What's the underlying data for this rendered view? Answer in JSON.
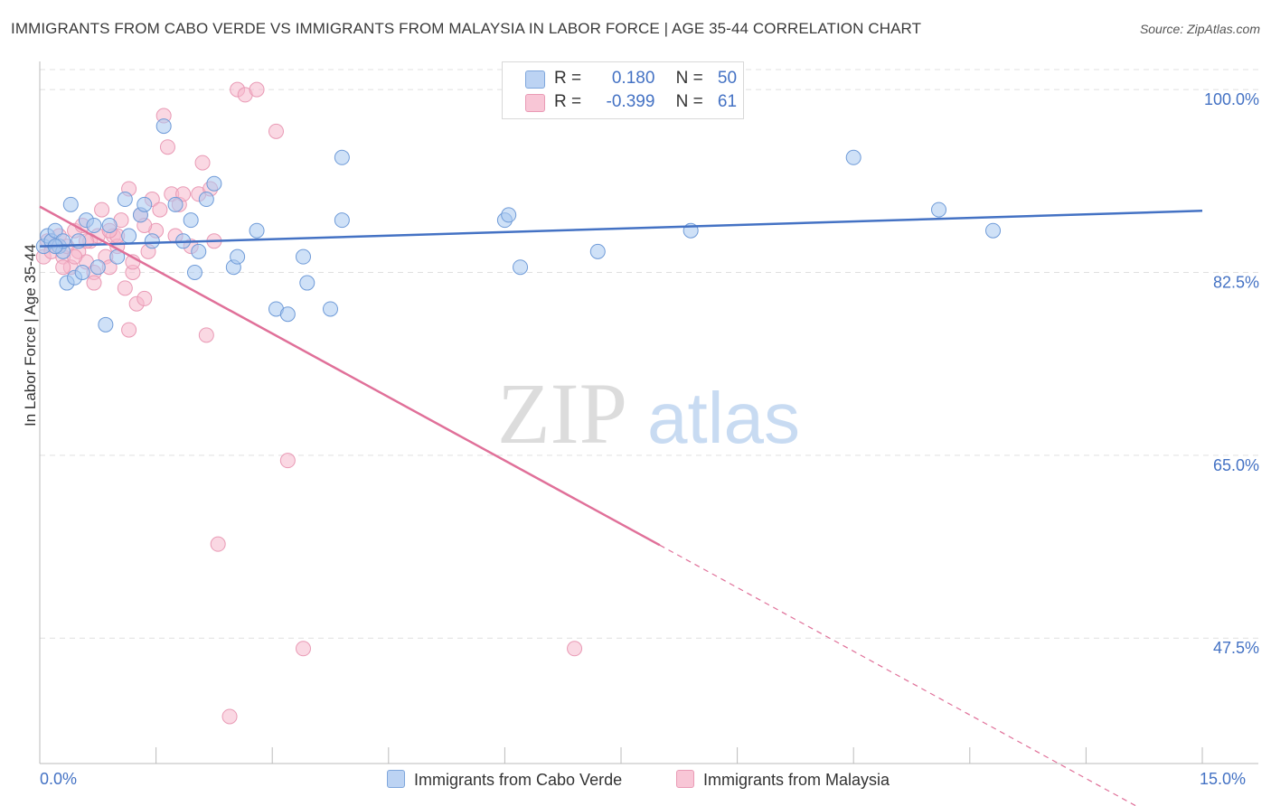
{
  "title": "IMMIGRANTS FROM CABO VERDE VS IMMIGRANTS FROM MALAYSIA IN LABOR FORCE | AGE 35-44 CORRELATION CHART",
  "source": "Source: ZipAtlas.com",
  "watermark": {
    "zip": "ZIP",
    "atlas": "atlas"
  },
  "legend": {
    "r_label": "R =",
    "n_label": "N =",
    "series1": {
      "r": "0.180",
      "n": "50"
    },
    "series2": {
      "r": "-0.399",
      "n": "61"
    }
  },
  "colors": {
    "blue": "#4472c4",
    "blue_fill": "#a8c8f0",
    "pink": "#e07099",
    "pink_fill": "#f5b8cc",
    "grid": "#e0e0e0"
  },
  "chart_data": {
    "type": "scatter",
    "title": "IMMIGRANTS FROM CABO VERDE VS IMMIGRANTS FROM MALAYSIA IN LABOR FORCE | AGE 35-44 CORRELATION CHART",
    "xlabel": "",
    "ylabel": "In Labor Force | Age 35-44",
    "xlim": [
      0,
      15
    ],
    "ylim": [
      35.5,
      102
    ],
    "x_tick_labels": [
      "0.0%",
      "15.0%"
    ],
    "y_ticks": [
      47.5,
      65.0,
      82.5,
      100.0
    ],
    "y_tick_labels": [
      "47.5%",
      "65.0%",
      "82.5%",
      "100.0%"
    ],
    "series": [
      {
        "name": "Immigrants from Cabo Verde",
        "color": "#4472c4",
        "trend": {
          "x0": 0,
          "y0": 85.0,
          "x1": 15,
          "y1": 88.4
        },
        "points": [
          [
            0.05,
            85.0
          ],
          [
            0.1,
            86.0
          ],
          [
            0.15,
            85.5
          ],
          [
            0.2,
            86.5
          ],
          [
            0.25,
            85.0
          ],
          [
            0.3,
            84.5
          ],
          [
            0.35,
            81.5
          ],
          [
            0.4,
            89.0
          ],
          [
            0.45,
            82.0
          ],
          [
            0.5,
            85.5
          ],
          [
            0.55,
            82.5
          ],
          [
            0.6,
            87.5
          ],
          [
            0.7,
            87.0
          ],
          [
            0.75,
            83.0
          ],
          [
            0.85,
            77.5
          ],
          [
            0.9,
            87.0
          ],
          [
            1.0,
            84.0
          ],
          [
            1.1,
            89.5
          ],
          [
            1.15,
            86.0
          ],
          [
            1.3,
            88.0
          ],
          [
            1.35,
            89.0
          ],
          [
            1.45,
            85.5
          ],
          [
            1.6,
            96.5
          ],
          [
            1.75,
            89.0
          ],
          [
            1.85,
            85.5
          ],
          [
            1.95,
            87.5
          ],
          [
            2.0,
            82.5
          ],
          [
            2.05,
            84.5
          ],
          [
            2.15,
            89.5
          ],
          [
            2.25,
            91.0
          ],
          [
            2.5,
            83.0
          ],
          [
            2.55,
            84.0
          ],
          [
            2.8,
            86.5
          ],
          [
            3.05,
            79.0
          ],
          [
            3.2,
            78.5
          ],
          [
            3.4,
            84.0
          ],
          [
            3.45,
            81.5
          ],
          [
            3.75,
            79.0
          ],
          [
            3.9,
            93.5
          ],
          [
            3.9,
            87.5
          ],
          [
            6.0,
            87.5
          ],
          [
            6.05,
            88.0
          ],
          [
            6.2,
            83.0
          ],
          [
            7.2,
            84.5
          ],
          [
            8.4,
            86.5
          ],
          [
            10.5,
            93.5
          ],
          [
            11.6,
            88.5
          ],
          [
            12.3,
            86.5
          ],
          [
            0.3,
            85.5
          ],
          [
            0.2,
            85.0
          ]
        ]
      },
      {
        "name": "Immigrants from Malaysia",
        "color": "#e07099",
        "trend": {
          "x0": 0,
          "y0": 88.8,
          "x1": 8.0,
          "y1": 56.4
        },
        "trend_dashed": {
          "x0": 8.0,
          "y0": 56.4,
          "x1": 14.5,
          "y1": 30.0
        },
        "points": [
          [
            0.05,
            84.0
          ],
          [
            0.1,
            85.5
          ],
          [
            0.15,
            84.5
          ],
          [
            0.2,
            85.0
          ],
          [
            0.25,
            86.0
          ],
          [
            0.3,
            84.0
          ],
          [
            0.35,
            85.0
          ],
          [
            0.4,
            83.0
          ],
          [
            0.45,
            86.5
          ],
          [
            0.5,
            84.5
          ],
          [
            0.55,
            87.0
          ],
          [
            0.6,
            83.5
          ],
          [
            0.65,
            85.5
          ],
          [
            0.7,
            82.5
          ],
          [
            0.75,
            86.0
          ],
          [
            0.8,
            88.5
          ],
          [
            0.85,
            84.0
          ],
          [
            0.9,
            83.0
          ],
          [
            0.95,
            86.0
          ],
          [
            1.0,
            85.0
          ],
          [
            1.05,
            87.5
          ],
          [
            1.1,
            81.0
          ],
          [
            1.15,
            90.5
          ],
          [
            1.2,
            82.5
          ],
          [
            1.25,
            79.5
          ],
          [
            1.3,
            88.0
          ],
          [
            1.35,
            80.0
          ],
          [
            1.4,
            84.5
          ],
          [
            1.45,
            89.5
          ],
          [
            1.5,
            86.5
          ],
          [
            1.55,
            88.5
          ],
          [
            1.6,
            97.5
          ],
          [
            1.65,
            94.5
          ],
          [
            1.7,
            90.0
          ],
          [
            1.75,
            86.0
          ],
          [
            1.8,
            89.0
          ],
          [
            1.85,
            90.0
          ],
          [
            1.95,
            85.0
          ],
          [
            2.05,
            90.0
          ],
          [
            2.1,
            93.0
          ],
          [
            2.15,
            76.5
          ],
          [
            2.2,
            90.5
          ],
          [
            2.25,
            85.5
          ],
          [
            2.3,
            56.5
          ],
          [
            2.45,
            40.0
          ],
          [
            2.55,
            100.0
          ],
          [
            2.65,
            99.5
          ],
          [
            2.8,
            100.0
          ],
          [
            3.05,
            96.0
          ],
          [
            3.2,
            64.5
          ],
          [
            3.4,
            46.5
          ],
          [
            6.9,
            46.5
          ],
          [
            1.0,
            86.0
          ],
          [
            1.15,
            77.0
          ],
          [
            1.35,
            87.0
          ],
          [
            0.6,
            85.5
          ],
          [
            0.9,
            86.5
          ],
          [
            1.2,
            83.5
          ],
          [
            0.3,
            83.0
          ],
          [
            0.45,
            84.0
          ],
          [
            0.7,
            81.5
          ]
        ]
      }
    ]
  },
  "bottom_legend": {
    "series1": "Immigrants from Cabo Verde",
    "series2": "Immigrants from Malaysia"
  }
}
